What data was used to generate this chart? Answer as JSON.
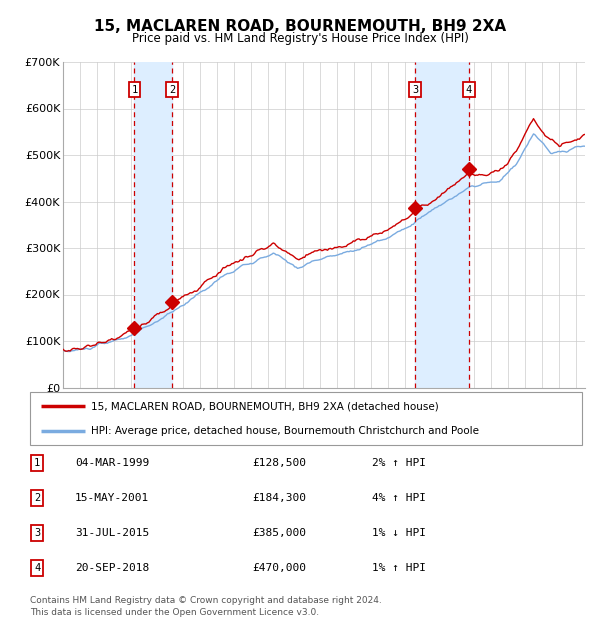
{
  "title": "15, MACLAREN ROAD, BOURNEMOUTH, BH9 2XA",
  "subtitle": "Price paid vs. HM Land Registry's House Price Index (HPI)",
  "background_color": "#ffffff",
  "grid_color": "#cccccc",
  "ylim": [
    0,
    700000
  ],
  "yticks": [
    0,
    100000,
    200000,
    300000,
    400000,
    500000,
    600000,
    700000
  ],
  "ytick_labels": [
    "£0",
    "£100K",
    "£200K",
    "£300K",
    "£400K",
    "£500K",
    "£600K",
    "£700K"
  ],
  "xlim_start": 1995.0,
  "xlim_end": 2025.5,
  "transactions": [
    {
      "num": 1,
      "date_str": "04-MAR-1999",
      "year": 1999.17,
      "price": 128500,
      "pct": "2%",
      "dir": "↑"
    },
    {
      "num": 2,
      "date_str": "15-MAY-2001",
      "year": 2001.37,
      "price": 184300,
      "pct": "4%",
      "dir": "↑"
    },
    {
      "num": 3,
      "date_str": "31-JUL-2015",
      "year": 2015.58,
      "price": 385000,
      "pct": "1%",
      "dir": "↓"
    },
    {
      "num": 4,
      "date_str": "20-SEP-2018",
      "year": 2018.72,
      "price": 470000,
      "pct": "1%",
      "dir": "↑"
    }
  ],
  "legend_line1": "15, MACLAREN ROAD, BOURNEMOUTH, BH9 2XA (detached house)",
  "legend_line2": "HPI: Average price, detached house, Bournemouth Christchurch and Poole",
  "footer_line1": "Contains HM Land Registry data © Crown copyright and database right 2024.",
  "footer_line2": "This data is licensed under the Open Government Licence v3.0.",
  "hpi_color": "#7aabe0",
  "price_color": "#cc0000",
  "marker_color": "#cc0000",
  "shade_color": "#ddeeff",
  "dashed_color": "#cc0000",
  "table_rows": [
    [
      "1",
      "04-MAR-1999",
      "£128,500",
      "2% ↑ HPI"
    ],
    [
      "2",
      "15-MAY-2001",
      "£184,300",
      "4% ↑ HPI"
    ],
    [
      "3",
      "31-JUL-2015",
      "£385,000",
      "1% ↓ HPI"
    ],
    [
      "4",
      "20-SEP-2018",
      "£470,000",
      "1% ↑ HPI"
    ]
  ],
  "hpi_anchors_y": [
    1995.0,
    1996.5,
    1998.0,
    1999.2,
    2001.4,
    2004.5,
    2007.3,
    2008.7,
    2009.5,
    2012.0,
    2014.0,
    2015.5,
    2017.5,
    2018.7,
    2019.5,
    2020.5,
    2021.5,
    2022.5,
    2023.5,
    2024.5,
    2025.4
  ],
  "hpi_anchors_v": [
    76000,
    84000,
    100000,
    115000,
    162000,
    243000,
    288000,
    258000,
    270000,
    295000,
    322000,
    355000,
    403000,
    428000,
    438000,
    442000,
    480000,
    548000,
    502000,
    510000,
    520000
  ],
  "price_anchors_y": [
    1995.0,
    1996.5,
    1998.0,
    1999.2,
    2001.4,
    2004.5,
    2007.3,
    2008.7,
    2009.5,
    2012.0,
    2014.0,
    2015.6,
    2017.5,
    2018.7,
    2019.5,
    2020.5,
    2021.5,
    2022.5,
    2023.2,
    2024.0,
    2025.4
  ],
  "price_anchors_v": [
    79000,
    88000,
    106000,
    122000,
    178000,
    258000,
    308000,
    274000,
    288000,
    312000,
    340000,
    378000,
    425000,
    462000,
    455000,
    462000,
    505000,
    580000,
    540000,
    520000,
    540000
  ]
}
